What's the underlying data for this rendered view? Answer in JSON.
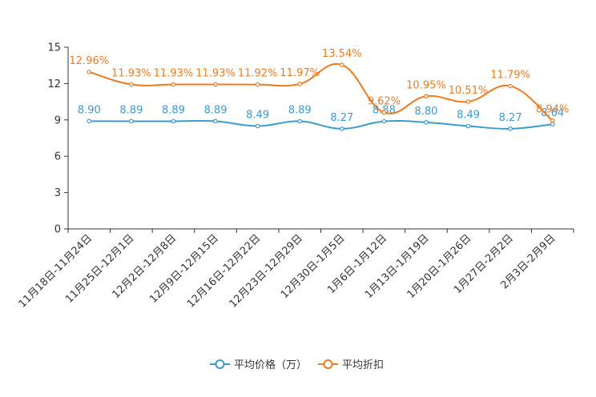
{
  "chart_data": {
    "type": "line",
    "categories": [
      "11月18日-11月24日",
      "11月25日-12月1日",
      "12月2日-12月8日",
      "12月9日-12月15日",
      "12月16日-12月22日",
      "12月23日-12月29日",
      "12月30日-1月5日",
      "1月6日-1月12日",
      "1月13日-1月19日",
      "1月20日-1月26日",
      "1月27日-2月2日",
      "2月3日-2月9日"
    ],
    "ylim": [
      0,
      15
    ],
    "yticks": [
      0,
      3,
      6,
      9,
      12,
      15
    ],
    "series": [
      {
        "name": "平均价格（万）",
        "color": "#3a9bd0",
        "values": [
          8.9,
          8.89,
          8.89,
          8.89,
          8.49,
          8.89,
          8.27,
          8.88,
          8.8,
          8.49,
          8.27,
          8.64
        ],
        "labels": [
          "8.90",
          "8.89",
          "8.89",
          "8.89",
          "8.49",
          "8.89",
          "8.27",
          "8.88",
          "8.80",
          "8.49",
          "8.27",
          "8.64"
        ]
      },
      {
        "name": "平均折扣",
        "color": "#f07a1e",
        "values": [
          12.96,
          11.93,
          11.93,
          11.93,
          11.92,
          11.97,
          13.54,
          9.62,
          10.95,
          10.51,
          11.79,
          8.94
        ],
        "labels": [
          "12.96%",
          "11.93%",
          "11.93%",
          "11.93%",
          "11.92%",
          "11.97%",
          "13.54%",
          "9.62%",
          "10.95%",
          "10.51%",
          "11.79%",
          "8.94%"
        ]
      }
    ]
  }
}
